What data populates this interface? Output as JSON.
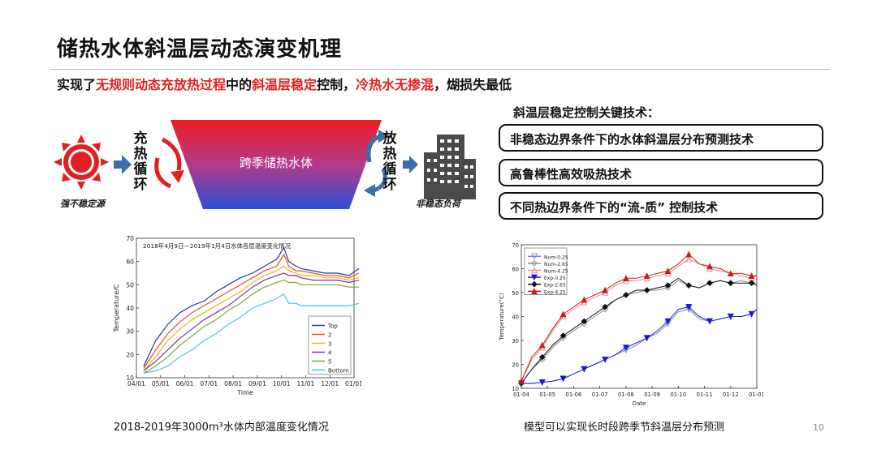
{
  "slide": {
    "title": "储热水体斜温层动态演变机理",
    "subtitle_parts": [
      "实现了",
      "无规则动态充放热过程",
      "中的",
      "斜温层稳定",
      "控制，",
      "冷热水无掺混",
      "，煳损失最低"
    ],
    "page_number": "10"
  },
  "schematic": {
    "source_caption": "强不稳定源",
    "charge_cycle": [
      "充",
      "热",
      "循",
      "环"
    ],
    "tank_label": "跨季储热水体",
    "discharge_cycle": [
      "放",
      "热",
      "循",
      "环"
    ],
    "load_caption": "非稳态负荷"
  },
  "key_tech": {
    "heading": "斜温层稳定控制关键技术：",
    "items": [
      "非稳态边界条件下的水体斜温层分布预测技术",
      "高鲁棒性高效吸热技术",
      "不同热边界条件下的“流-质” 控制技术"
    ]
  },
  "captions": {
    "left": "2018-2019年3000m³水体内部温度变化情况",
    "right": "模型可以实现长时段跨季节斜温层分布预测"
  },
  "colors": {
    "accent_red": "#e0211f",
    "tank_top": "#ee1c25",
    "tank_bottom": "#2b4fd8",
    "arrow_blue": "#3a6fa8"
  },
  "chart_data": [
    {
      "type": "line",
      "title": "2018年4月9日—2019年1月4日水体各层温度变化情况",
      "xlabel": "Time",
      "ylabel": "Temperature/C",
      "ylim": [
        10,
        70
      ],
      "yticks": [
        10,
        20,
        30,
        40,
        50,
        60,
        70
      ],
      "x_ticks": [
        "04/01",
        "05/01",
        "06/01",
        "07/01",
        "08/01",
        "09/01",
        "10/01",
        "11/01",
        "12/01",
        "01/01"
      ],
      "x": [
        0.3,
        0.8,
        1.3,
        1.8,
        2.3,
        2.8,
        3.3,
        3.8,
        4.3,
        4.8,
        5.3,
        5.8,
        6.1,
        6.3,
        6.6,
        6.8,
        7.3,
        7.8,
        8.3,
        8.8,
        9.2
      ],
      "series": [
        {
          "name": "Top",
          "color": "#1f3f93",
          "values": [
            15,
            26,
            33,
            38,
            41,
            43,
            47,
            50,
            53,
            55,
            58,
            61,
            66,
            60,
            58,
            57,
            56,
            55,
            55,
            54,
            57
          ]
        },
        {
          "name": "2",
          "color": "#d9531e",
          "values": [
            14,
            22,
            29,
            34,
            38,
            41,
            44,
            47,
            50,
            53,
            56,
            58,
            63,
            58,
            56,
            56,
            55,
            54,
            54,
            53,
            55
          ]
        },
        {
          "name": "3",
          "color": "#e8b41a",
          "values": [
            13,
            19,
            26,
            31,
            35,
            38,
            41,
            44,
            47,
            51,
            54,
            56,
            58,
            56,
            55,
            54,
            54,
            53,
            53,
            52,
            53
          ]
        },
        {
          "name": "4",
          "color": "#8a2da0",
          "values": [
            13,
            17,
            22,
            27,
            31,
            35,
            38,
            41,
            45,
            49,
            52,
            54,
            55,
            54,
            54,
            53,
            52,
            52,
            52,
            51,
            52
          ]
        },
        {
          "name": "5",
          "color": "#77ab2f",
          "values": [
            12,
            15,
            19,
            24,
            28,
            32,
            35,
            39,
            42,
            46,
            49,
            51,
            52,
            51,
            51,
            50,
            50,
            50,
            50,
            49,
            49
          ]
        },
        {
          "name": "Bottom",
          "color": "#4dbeee",
          "values": [
            12,
            13,
            15,
            19,
            22,
            26,
            29,
            33,
            36,
            40,
            42,
            44,
            46,
            42,
            42,
            41,
            41,
            41,
            41,
            41,
            42
          ]
        }
      ],
      "legend": "bottom-right",
      "grid": false
    },
    {
      "type": "line",
      "xlabel": "Date",
      "ylabel": "Temperature(°C)",
      "ylim": [
        10,
        70
      ],
      "yticks": [
        10,
        20,
        30,
        40,
        50,
        60,
        70
      ],
      "x_ticks": [
        "01-04",
        "01-05",
        "01-06",
        "01-07",
        "01-08",
        "01-09",
        "01-10",
        "01-11",
        "01-12",
        "01-01"
      ],
      "x": [
        0,
        0.4,
        0.8,
        1.2,
        1.6,
        2.0,
        2.4,
        2.8,
        3.2,
        3.6,
        4.0,
        4.4,
        4.8,
        5.2,
        5.6,
        6.0,
        6.4,
        6.8,
        7.2,
        7.6,
        8.0,
        8.4,
        8.8,
        9.0
      ],
      "series": [
        {
          "name": "Num-0.25",
          "color": "#7c7ce0",
          "marker": "triangle-down-open",
          "values": [
            12,
            12,
            12.5,
            13,
            14,
            16,
            18,
            20,
            22,
            24,
            26,
            28,
            31,
            33,
            37,
            42,
            43,
            39,
            38,
            39,
            40,
            40,
            41,
            43
          ]
        },
        {
          "name": "Num-2.65",
          "color": "#8c8c8c",
          "marker": "diamond-open",
          "values": [
            12,
            18,
            22,
            27,
            31,
            34,
            37,
            40,
            43,
            47,
            49,
            50,
            51,
            51,
            52,
            55,
            53,
            52,
            54,
            55,
            54,
            55,
            54,
            54
          ]
        },
        {
          "name": "Num-4.25",
          "color": "#e88888",
          "marker": "triangle-up-open",
          "values": [
            13,
            22,
            27,
            34,
            40,
            43,
            46,
            48,
            50,
            53,
            55,
            55,
            56,
            57,
            58,
            61,
            64,
            62,
            60,
            59,
            58,
            57,
            56,
            57
          ]
        },
        {
          "name": "Exp-0.25",
          "color": "#1a1ad0",
          "marker": "triangle-down",
          "values": [
            12,
            12,
            12.5,
            13,
            14,
            16,
            18,
            20,
            22,
            24,
            27,
            29,
            31,
            34,
            38,
            43,
            44,
            40,
            38,
            39,
            40,
            40,
            41,
            43
          ]
        },
        {
          "name": "Exp-2.65",
          "color": "#111111",
          "marker": "diamond",
          "values": [
            12,
            18,
            23,
            28,
            32,
            35,
            38,
            41,
            44,
            47,
            49,
            51,
            51,
            52,
            53,
            56,
            53,
            52,
            54,
            55,
            54,
            54,
            54,
            53
          ]
        },
        {
          "name": "Exp-4.25",
          "color": "#d01818",
          "marker": "triangle-up",
          "values": [
            13,
            23,
            28,
            35,
            41,
            44,
            47,
            49,
            51,
            54,
            56,
            56,
            57,
            58,
            59,
            62,
            66,
            62,
            61,
            60,
            58,
            58,
            57,
            57
          ]
        }
      ],
      "legend": "top-left",
      "grid": false
    }
  ]
}
